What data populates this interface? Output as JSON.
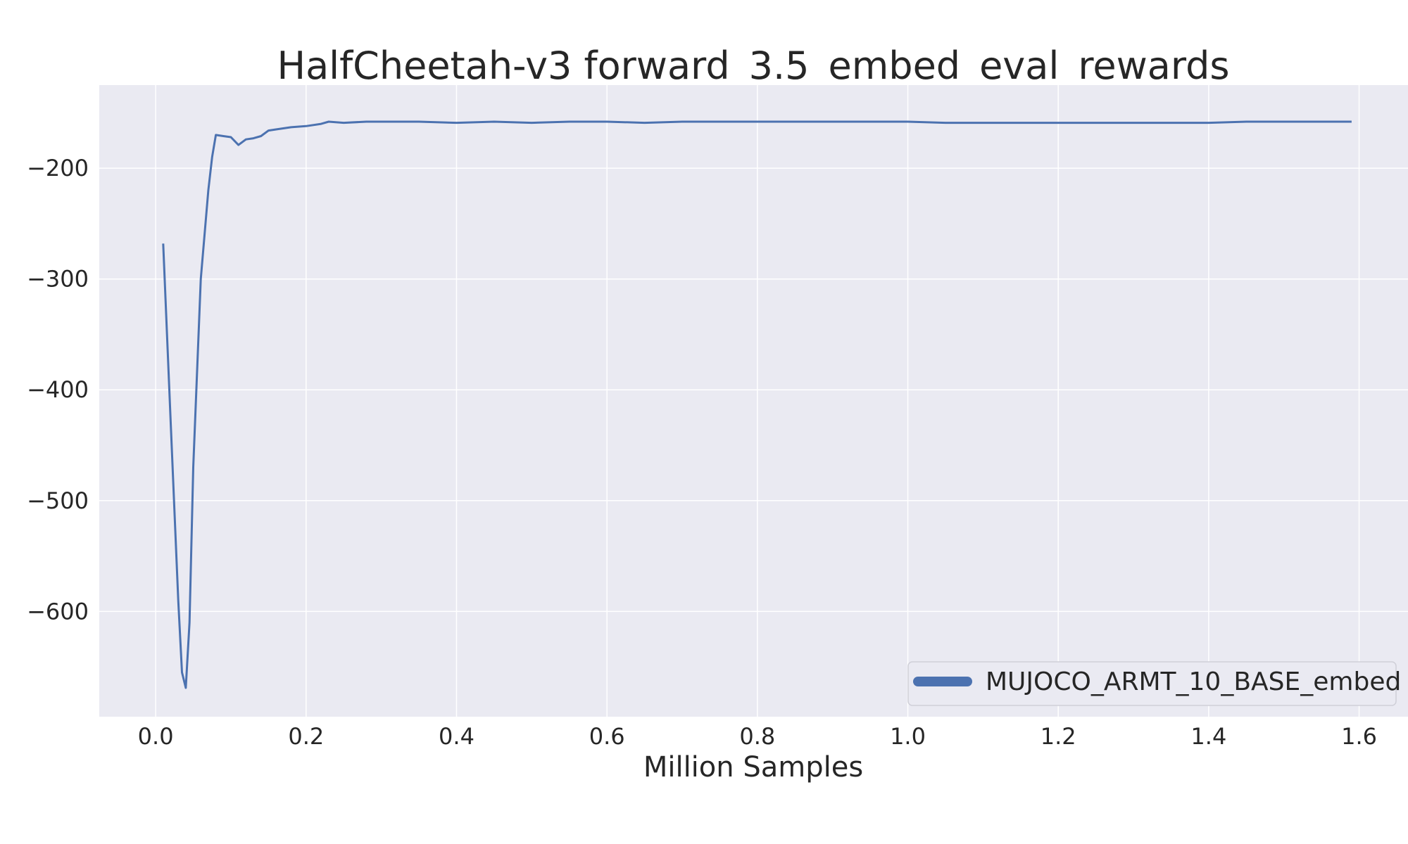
{
  "chart_data": {
    "type": "line",
    "title": "HalfCheetah-v3 forward_3.5_embed_eval_rewards",
    "xlabel": "Million Samples",
    "ylabel": "",
    "xlim": [
      -0.075,
      1.665
    ],
    "ylim": [
      -695,
      -125
    ],
    "xticks": [
      0.0,
      0.2,
      0.4,
      0.6,
      0.8,
      1.0,
      1.2,
      1.4,
      1.6
    ],
    "xtick_labels": [
      "0.0",
      "0.2",
      "0.4",
      "0.6",
      "0.8",
      "1.0",
      "1.2",
      "1.4",
      "1.6"
    ],
    "yticks": [
      -600,
      -500,
      -400,
      -300,
      -200
    ],
    "ytick_labels": [
      "−600",
      "−500",
      "−400",
      "−300",
      "−200"
    ],
    "grid": true,
    "legend_position": "lower-right",
    "colors": {
      "background": "#eaeaf2",
      "grid": "#ffffff",
      "line": "#4c72b0"
    },
    "series": [
      {
        "name": "MUJOCO_ARMT_10_BASE_embed",
        "color": "#4c72b0",
        "x": [
          0.01,
          0.02,
          0.03,
          0.035,
          0.04,
          0.045,
          0.05,
          0.06,
          0.07,
          0.075,
          0.08,
          0.09,
          0.1,
          0.11,
          0.12,
          0.13,
          0.14,
          0.15,
          0.16,
          0.18,
          0.2,
          0.22,
          0.23,
          0.25,
          0.28,
          0.3,
          0.33,
          0.35,
          0.4,
          0.45,
          0.5,
          0.55,
          0.6,
          0.65,
          0.7,
          0.75,
          0.8,
          0.85,
          0.9,
          0.95,
          1.0,
          1.05,
          1.1,
          1.15,
          1.2,
          1.25,
          1.3,
          1.35,
          1.4,
          1.45,
          1.5,
          1.55,
          1.59
        ],
        "y": [
          -268,
          -430,
          -590,
          -655,
          -669,
          -610,
          -470,
          -300,
          -220,
          -190,
          -170,
          -171,
          -172,
          -179,
          -174,
          -173,
          -171,
          -166,
          -165,
          -163,
          -162,
          -160,
          -158,
          -159,
          -158,
          -158,
          -158,
          -158,
          -159,
          -158,
          -159,
          -158,
          -158,
          -159,
          -158,
          -158,
          -158,
          -158,
          -158,
          -158,
          -158,
          -159,
          -159,
          -159,
          -159,
          -159,
          -159,
          -159,
          -159,
          -158,
          -158,
          -158,
          -158
        ]
      }
    ]
  }
}
